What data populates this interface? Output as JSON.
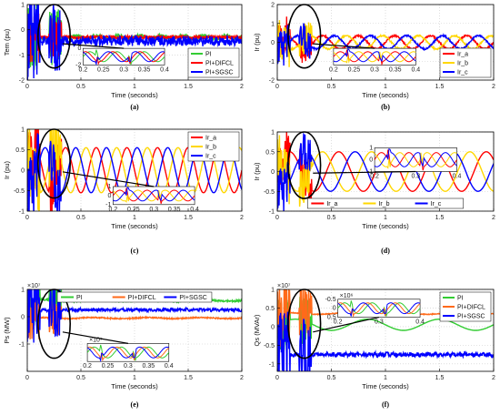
{
  "figure_label": "Six panels of DFIG simulation results",
  "chart_data": [
    {
      "panel": "a",
      "caption": "(a)",
      "type": "line",
      "ylabel": "Tem (pu)",
      "xlabel": "Time (seconds)",
      "xlim": [
        0,
        2
      ],
      "ylim": [
        -2,
        1
      ],
      "xticks": [
        "0",
        "0.5",
        "1",
        "1.5",
        "2"
      ],
      "yticks": [
        "-2",
        "-1",
        "0",
        "1"
      ],
      "exponent": "",
      "legend": {
        "position": "right",
        "entries": [
          "PI",
          "PI+DIFCL",
          "PI+SGSC"
        ]
      },
      "series": [
        {
          "name": "PI",
          "color": "#33cc33",
          "base": -0.3,
          "amp": 0.05,
          "freq": 5,
          "noise": 0.08,
          "trans_amp": 1.4
        },
        {
          "name": "PI+DIFCL",
          "color": "#ff0000",
          "base": -0.3,
          "amp": 0.0,
          "freq": 5,
          "noise": 0.06,
          "trans_amp": 1.0
        },
        {
          "name": "PI+SGSC",
          "color": "#0000ff",
          "base": -0.45,
          "amp": 0.03,
          "freq": 20,
          "noise": 0.18,
          "trans_amp": 1.8
        }
      ],
      "inset": {
        "xticks": [
          "0.2",
          "0.25",
          "0.3",
          "0.35",
          "0.4"
        ],
        "yticks": [
          "0",
          "-2"
        ],
        "exponent": ""
      }
    },
    {
      "panel": "b",
      "caption": "(b)",
      "type": "line",
      "ylabel": "Ir (pu)",
      "xlabel": "Time (seconds)",
      "xlim": [
        0,
        2
      ],
      "ylim": [
        -2,
        2
      ],
      "xticks": [
        "0",
        "0.5",
        "1",
        "1.5",
        "2"
      ],
      "yticks": [
        "-2",
        "-1",
        "0",
        "1",
        "2"
      ],
      "exponent": "",
      "legend": {
        "position": "right",
        "entries": [
          "Ir_a",
          "Ir_b",
          "Ir_c"
        ]
      },
      "series": [
        {
          "name": "Ir_a",
          "color": "#ff0000",
          "base": 0,
          "amp": 0.35,
          "freq": 3,
          "phase": 0,
          "noise": 0.04,
          "trans_amp": 1.0
        },
        {
          "name": "Ir_b",
          "color": "#ffd700",
          "base": 0,
          "amp": 0.35,
          "freq": 3,
          "phase": 2.09,
          "noise": 0.04,
          "trans_amp": 1.0
        },
        {
          "name": "Ir_c",
          "color": "#0000ff",
          "base": 0,
          "amp": 0.35,
          "freq": 3,
          "phase": 4.19,
          "noise": 0.04,
          "trans_amp": 1.0
        }
      ],
      "inset": {
        "xticks": [
          "0.2",
          "0.25",
          "0.3",
          "0.35",
          "0.4"
        ],
        "yticks": [],
        "exponent": ""
      }
    },
    {
      "panel": "c",
      "caption": "(c)",
      "type": "line",
      "ylabel": "Ir (pu)",
      "xlabel": "Time (seconds)",
      "xlim": [
        0,
        2
      ],
      "ylim": [
        -1,
        1
      ],
      "xticks": [
        "0",
        "0.5",
        "1",
        "1.5",
        "2"
      ],
      "yticks": [
        "-1",
        "-0.5",
        "0",
        "0.5",
        "1"
      ],
      "exponent": "",
      "legend": {
        "position": "top-right",
        "entries": [
          "Ir_a",
          "Ir_b",
          "Ir_c"
        ]
      },
      "series": [
        {
          "name": "Ir_a",
          "color": "#ff0000",
          "base": 0,
          "amp": 0.55,
          "freq": 3.5,
          "phase": 0,
          "noise": 0.0,
          "trans_amp": 0.9
        },
        {
          "name": "Ir_b",
          "color": "#ffd700",
          "base": 0,
          "amp": 0.55,
          "freq": 3.5,
          "phase": 2.09,
          "noise": 0.0,
          "trans_amp": 0.9
        },
        {
          "name": "Ir_c",
          "color": "#0000ff",
          "base": 0,
          "amp": 0.55,
          "freq": 3.5,
          "phase": 4.19,
          "noise": 0.0,
          "trans_amp": 0.9
        }
      ],
      "inset": {
        "xticks": [
          "0.2",
          "0.25",
          "0.3",
          "0.35",
          "0.4"
        ],
        "yticks": [
          "1",
          "0",
          "-1"
        ],
        "exponent": ""
      }
    },
    {
      "panel": "d",
      "caption": "(d)",
      "type": "line",
      "ylabel": "Ir (pu)",
      "xlabel": "Time (seconds)",
      "xlim": [
        0,
        2
      ],
      "ylim": [
        -1,
        1
      ],
      "xticks": [
        "0",
        "0.5",
        "1",
        "1.5",
        "2"
      ],
      "yticks": [
        "-1",
        "-0.5",
        "0",
        "0.5",
        "1"
      ],
      "exponent": "",
      "legend": {
        "position": "bottom",
        "entries": [
          "Ir_a",
          "Ir_b",
          "Ir_c"
        ]
      },
      "series": [
        {
          "name": "Ir_a",
          "color": "#ff0000",
          "base": 0,
          "amp": 0.5,
          "freq": 2.2,
          "phase": 0,
          "noise": 0.0,
          "trans_amp": 0.6
        },
        {
          "name": "Ir_b",
          "color": "#ffd700",
          "base": 0,
          "amp": 0.5,
          "freq": 2.2,
          "phase": 2.09,
          "noise": 0.0,
          "trans_amp": 0.6
        },
        {
          "name": "Ir_c",
          "color": "#0000ff",
          "base": 0,
          "amp": 0.5,
          "freq": 2.2,
          "phase": 4.19,
          "noise": 0.0,
          "trans_amp": 0.6
        }
      ],
      "inset": {
        "xticks": [
          "0.2",
          "0.3",
          "0.4"
        ],
        "yticks": [
          "1",
          "0",
          "-1"
        ],
        "exponent": ""
      }
    },
    {
      "panel": "e",
      "caption": "(e)",
      "type": "line",
      "ylabel": "Ps (MW)",
      "xlabel": "Time (seconds)",
      "xlim": [
        0,
        2
      ],
      "ylim": [
        -2,
        1
      ],
      "xticks": [
        "0",
        "0.5",
        "1",
        "1.5",
        "2"
      ],
      "yticks": [
        "-1",
        "0",
        "1"
      ],
      "exponent": "×10⁷",
      "legend": {
        "position": "top",
        "entries": [
          "PI",
          "PI+DIFCL",
          "PI+SGSC"
        ]
      },
      "series": [
        {
          "name": "PI",
          "color": "#33cc33",
          "base": 0.6,
          "amp": 0.03,
          "freq": 2,
          "noise": 0.03,
          "trans_amp": 1.0
        },
        {
          "name": "PI+DIFCL",
          "color": "#ff6a1a",
          "base": -0.05,
          "amp": 0.02,
          "freq": 2,
          "noise": 0.02,
          "trans_amp": 0.8
        },
        {
          "name": "PI+SGSC",
          "color": "#0000ff",
          "base": 0.25,
          "amp": 0.02,
          "freq": 15,
          "noise": 0.05,
          "trans_amp": 1.3
        }
      ],
      "inset": {
        "xticks": [
          "0.2",
          "0.25",
          "0.3",
          "0.35",
          "0.4"
        ],
        "yticks": [],
        "exponent": "×10⁷"
      }
    },
    {
      "panel": "f",
      "caption": "(f)",
      "type": "line",
      "ylabel": "Qs (MVAr)",
      "xlabel": "Time (seconds)",
      "xlim": [
        0,
        2
      ],
      "ylim": [
        -1.2,
        1
      ],
      "xticks": [
        "0",
        "0.5",
        "1",
        "1.5",
        "2"
      ],
      "yticks": [
        "-1",
        "-0.5",
        "0",
        "0.5",
        "1"
      ],
      "exponent": "×10⁷",
      "legend": {
        "position": "top-right",
        "entries": [
          "PI",
          "PI+DIFCL",
          "PI+SGSC"
        ]
      },
      "series": [
        {
          "name": "PI",
          "color": "#33cc33",
          "base": 0.05,
          "amp": 0.15,
          "freq": 1.5,
          "noise": 0.0,
          "trans_amp": 0.8
        },
        {
          "name": "PI+DIFCL",
          "color": "#ff6a1a",
          "base": 0.35,
          "amp": 0.02,
          "freq": 2,
          "noise": 0.01,
          "trans_amp": 0.9
        },
        {
          "name": "PI+SGSC",
          "color": "#0000ff",
          "base": -0.75,
          "amp": 0.02,
          "freq": 18,
          "noise": 0.05,
          "trans_amp": 1.2
        }
      ],
      "inset": {
        "xticks": [
          "0.2",
          "0.3",
          "0.4"
        ],
        "yticks": [
          "-0.5",
          "0",
          "0.5"
        ],
        "exponent": "×10⁶"
      }
    }
  ]
}
